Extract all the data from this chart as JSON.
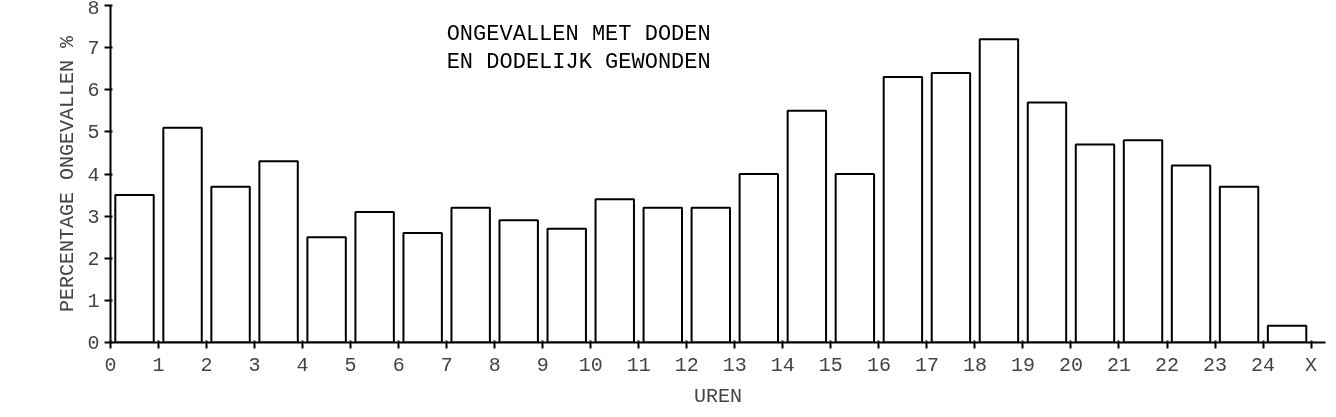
{
  "chart_data": {
    "type": "bar",
    "title": "ONGEVALLEN MET DODEN\nEN DODELIJK GEWONDEN",
    "xlabel": "UREN",
    "ylabel": "PERCENTAGE ONGEVALLEN %",
    "x": [
      0.5,
      1.5,
      2.5,
      3.5,
      4.5,
      5.5,
      6.5,
      7.5,
      8.5,
      9.5,
      10.5,
      11.5,
      12.5,
      13.5,
      14.5,
      15.5,
      16.5,
      17.5,
      18.5,
      19.5,
      20.5,
      21.5,
      22.5,
      23.5,
      24.5
    ],
    "values": [
      3.5,
      5.1,
      3.7,
      4.3,
      2.5,
      3.1,
      2.6,
      3.2,
      2.9,
      2.7,
      3.4,
      3.2,
      3.2,
      4.0,
      5.5,
      4.0,
      6.3,
      6.4,
      7.2,
      5.7,
      4.7,
      4.8,
      4.2,
      3.7,
      0.4
    ],
    "color": "#ffffff",
    "xlim": [
      0,
      25.3
    ],
    "xticks": [
      0,
      1,
      2,
      3,
      4,
      5,
      6,
      7,
      8,
      9,
      10,
      11,
      12,
      13,
      14,
      15,
      16,
      17,
      18,
      19,
      20,
      21,
      22,
      23,
      24,
      {
        "value": 25,
        "label": "X"
      }
    ],
    "ylim": [
      0,
      8
    ],
    "yticks": [
      0,
      1,
      2,
      3,
      4,
      5,
      6,
      7,
      8
    ],
    "grid": false
  }
}
